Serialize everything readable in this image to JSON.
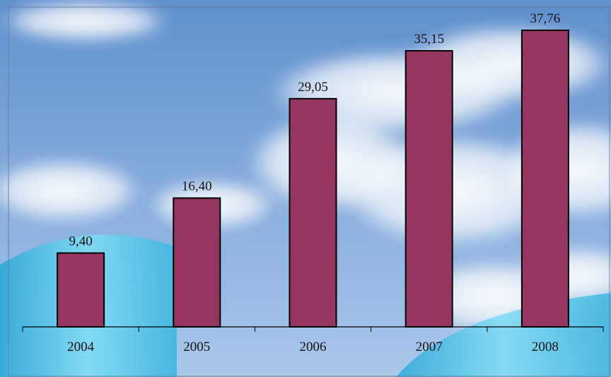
{
  "colors": {
    "bar": "#963562",
    "sky_top": "#5f8fcc",
    "sky_bottom": "#a9c8ea",
    "tank": "#4ec7ea"
  },
  "chart_data": {
    "type": "bar",
    "categories": [
      "2004",
      "2005",
      "2006",
      "2007",
      "2008"
    ],
    "values": [
      9.4,
      16.4,
      29.05,
      35.15,
      37.76
    ],
    "value_labels": [
      "9,40",
      "16,40",
      "29,05",
      "35,15",
      "37,76"
    ],
    "ylim": [
      0,
      40
    ],
    "grid": false,
    "legend": "none"
  }
}
